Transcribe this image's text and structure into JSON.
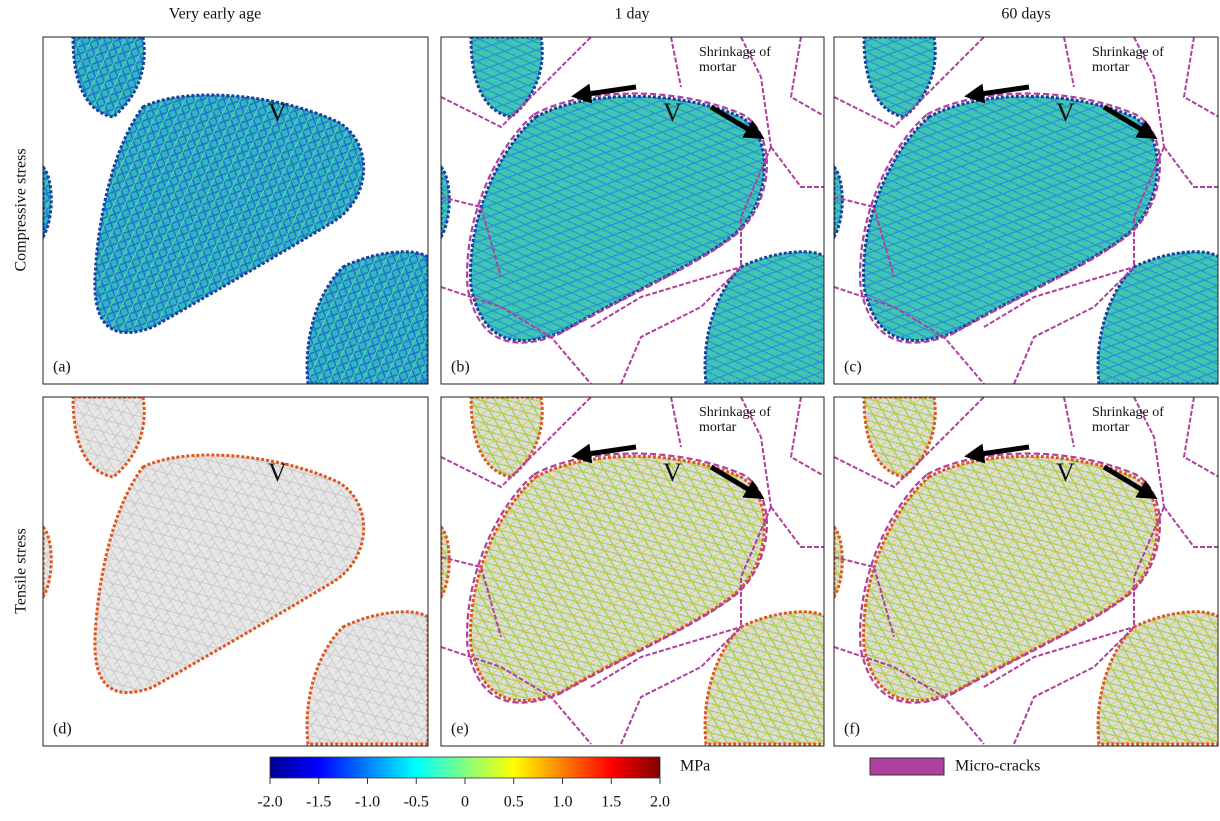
{
  "columns": [
    "Very early age",
    "1 day",
    "60 days"
  ],
  "rows": [
    "Compressive stress",
    "Tensile stress"
  ],
  "panels": [
    {
      "label": "(a)",
      "marker": "V"
    },
    {
      "label": "(b)",
      "marker": "V",
      "annotation": [
        "Shrinkage of",
        "mortar"
      ]
    },
    {
      "label": "(c)",
      "marker": "V",
      "annotation": [
        "Shrinkage of",
        "mortar"
      ]
    },
    {
      "label": "(d)",
      "marker": "V"
    },
    {
      "label": "(e)",
      "marker": "V",
      "annotation": [
        "Shrinkage of",
        "mortar"
      ]
    },
    {
      "label": "(f)",
      "marker": "V",
      "annotation": [
        "Shrinkage of",
        "mortar"
      ]
    }
  ],
  "colorbar": {
    "unit": "MPa",
    "lim": [
      -2,
      2
    ],
    "ticks": [
      {
        "value": -2,
        "label": "-2.0"
      },
      -1.5,
      {
        "value": -1,
        "label": "-1.0"
      },
      -0.5,
      0,
      0.5,
      {
        "value": 1,
        "label": "1.0"
      },
      1.5,
      {
        "value": 2,
        "label": "2.0"
      }
    ],
    "colors": [
      "#00008f",
      "#0000ff",
      "#0080ff",
      "#00ffff",
      "#80ff80",
      "#ffff00",
      "#ff8000",
      "#ff0000",
      "#800000"
    ]
  },
  "legend": {
    "label": "Micro-cracks",
    "color": "#b0409e"
  }
}
